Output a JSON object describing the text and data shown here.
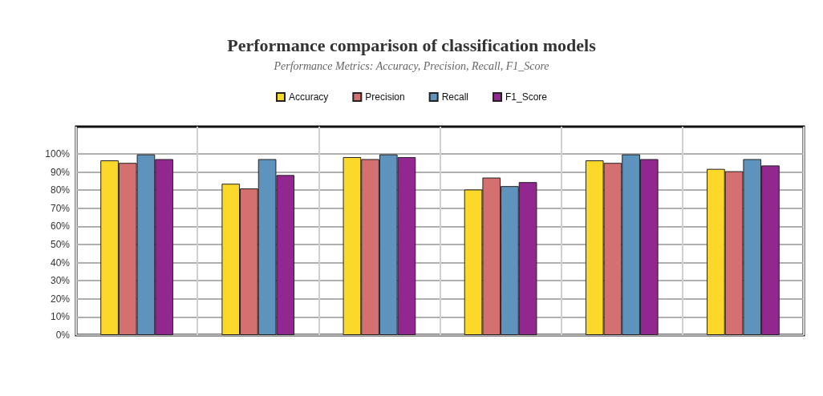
{
  "chart_data": {
    "type": "bar",
    "title": "Performance comparison of classification models",
    "subtitle": "Performance Metrics: Accuracy, Precision, Recall, F1_Score",
    "categories": [
      null,
      null,
      null,
      null,
      null,
      null
    ],
    "series": [
      {
        "name": "Accuracy",
        "color": "#fcd82a",
        "values": [
          96.4,
          83.5,
          98.2,
          80.3,
          96.4,
          91.7
        ]
      },
      {
        "name": "Precision",
        "color": "#d47170",
        "values": [
          95,
          80.9,
          97.1,
          86.9,
          95,
          90.4
        ]
      },
      {
        "name": "Recall",
        "color": "#5e93bd",
        "values": [
          99.7,
          97.1,
          99.7,
          82.2,
          99.7,
          97.1
        ]
      },
      {
        "name": "F1_Score",
        "color": "#922790",
        "values": [
          97.1,
          88.3,
          98.2,
          84.4,
          97.1,
          93.6
        ]
      }
    ],
    "ylim": [
      0,
      115
    ],
    "yticks": [
      {
        "value": 0,
        "label": "0%"
      },
      {
        "value": 10,
        "label": "10%"
      },
      {
        "value": 20,
        "label": "20%"
      },
      {
        "value": 30,
        "label": "30%"
      },
      {
        "value": 40,
        "label": "40%"
      },
      {
        "value": 50,
        "label": "50%"
      },
      {
        "value": 60,
        "label": "60%"
      },
      {
        "value": 70,
        "label": "70%"
      },
      {
        "value": 80,
        "label": "80%"
      },
      {
        "value": 90,
        "label": "90%"
      },
      {
        "value": 100,
        "label": "100%"
      }
    ],
    "grid": true,
    "legend": "top"
  }
}
